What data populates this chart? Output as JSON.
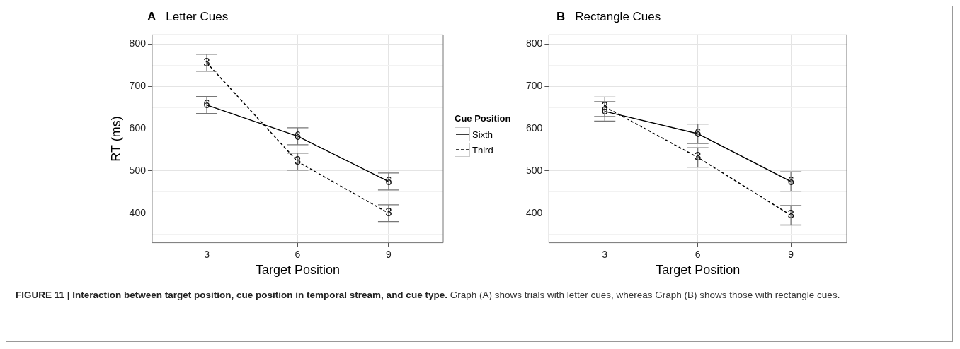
{
  "chart_data": [
    {
      "type": "line",
      "title": "A",
      "subtitle": "Letter Cues",
      "xlabel": "Target Position",
      "ylabel": "RT (ms)",
      "legend_title": "Cue Position",
      "legend": "right",
      "grid": true,
      "marker": "none",
      "x": [
        3,
        6,
        9
      ],
      "xlim": [
        1.2,
        10.8
      ],
      "xticks": [
        3,
        6,
        9
      ],
      "ylim": [
        330,
        822
      ],
      "yticks": [
        {
          "value": 350,
          "label": null
        },
        400,
        {
          "value": 450,
          "label": null
        },
        500,
        {
          "value": 550,
          "label": null
        },
        600,
        {
          "value": 650,
          "label": null
        },
        700,
        {
          "value": 750,
          "label": null
        },
        800
      ],
      "series": [
        {
          "name": "Sixth",
          "color": "#000000",
          "line_style": "solid",
          "values": [
            656,
            582,
            475
          ],
          "errors": [
            20,
            20,
            20
          ]
        },
        {
          "name": "Third",
          "color": "#000000",
          "line_style": "dashed",
          "values": [
            756,
            522,
            400
          ],
          "errors": [
            20,
            20,
            20
          ]
        }
      ],
      "annotations": [
        {
          "text": "6",
          "x": 3,
          "y": 656
        },
        {
          "text": "6",
          "x": 6,
          "y": 582
        },
        {
          "text": "6",
          "x": 9,
          "y": 475
        },
        {
          "text": "3",
          "x": 3,
          "y": 756
        },
        {
          "text": "3",
          "x": 6,
          "y": 522
        },
        {
          "text": "3",
          "x": 9,
          "y": 400
        }
      ]
    },
    {
      "type": "line",
      "title": "B",
      "subtitle": "Rectangle Cues",
      "xlabel": "Target Position",
      "grid": true,
      "marker": "none",
      "x": [
        3,
        6,
        9
      ],
      "xlim": [
        1.2,
        10.8
      ],
      "xticks": [
        3,
        6,
        9
      ],
      "ylim": [
        330,
        822
      ],
      "yticks": [
        {
          "value": 350,
          "label": null
        },
        400,
        {
          "value": 450,
          "label": null
        },
        500,
        {
          "value": 550,
          "label": null
        },
        600,
        {
          "value": 650,
          "label": null
        },
        700,
        {
          "value": 750,
          "label": null
        },
        800
      ],
      "series": [
        {
          "color": "#000000",
          "line_style": "solid",
          "values": [
            641,
            588,
            475
          ],
          "errors": [
            23,
            23,
            23
          ]
        },
        {
          "color": "#000000",
          "line_style": "dashed",
          "values": [
            652,
            532,
            395
          ],
          "errors": [
            23,
            23,
            23
          ]
        }
      ],
      "annotations": [
        {
          "text": "6",
          "x": 3,
          "y": 641
        },
        {
          "text": "6",
          "x": 6,
          "y": 588
        },
        {
          "text": "6",
          "x": 9,
          "y": 475
        },
        {
          "text": "3",
          "x": 3,
          "y": 652
        },
        {
          "text": "3",
          "x": 6,
          "y": 532
        },
        {
          "text": "3",
          "x": 9,
          "y": 395
        },
        "FIGURE 11 | Interaction between target position, cue position in temporal stream, and cue type.",
        "Graph (A) shows trials with letter cues, whereas Graph (B) shows those with rectangle cues."
      ]
    }
  ]
}
